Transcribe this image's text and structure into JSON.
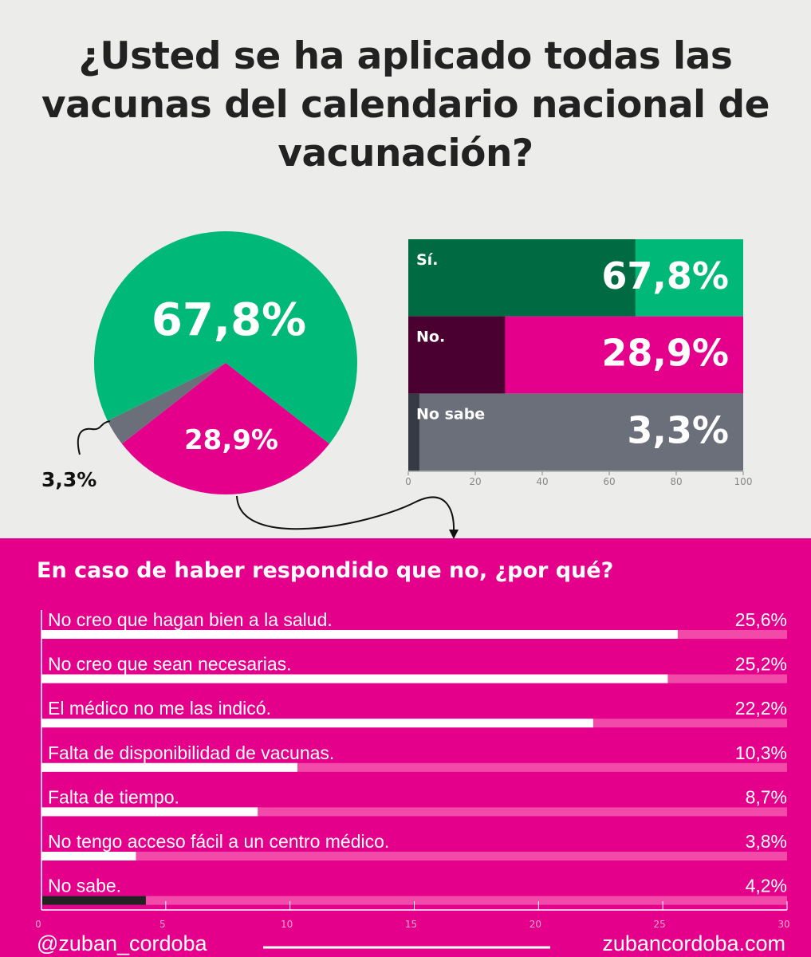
{
  "title": "¿Usted se ha aplicado todas las vacunas del calendario nacional de vacunación?",
  "chart_data": [
    {
      "type": "pie",
      "slices": [
        {
          "label": "67,8%",
          "value": 67.8,
          "color": "#00b877"
        },
        {
          "label": "28,9%",
          "value": 28.9,
          "color": "#e5008c"
        },
        {
          "label": "3,3%",
          "value": 3.3,
          "color": "#6b6f7a"
        }
      ]
    },
    {
      "type": "bar",
      "orientation": "horizontal",
      "xlim": [
        0,
        100
      ],
      "xticks": [
        "0",
        "20",
        "40",
        "60",
        "80",
        "100"
      ],
      "categories": [
        "Sí.",
        "No.",
        "No sabe"
      ],
      "values": [
        67.8,
        28.9,
        3.3
      ],
      "labels": [
        "67,8%",
        "28,9%",
        "3,3%"
      ],
      "colors": [
        {
          "bar": "#006b43",
          "bg": "#00b877"
        },
        {
          "bar": "#4a0030",
          "bg": "#e5008c"
        },
        {
          "bar": "#353a44",
          "bg": "#6b6f7a"
        }
      ]
    },
    {
      "type": "bar",
      "orientation": "horizontal",
      "title": "En caso de  haber respondido que no, ¿por qué?",
      "xlim": [
        0,
        30
      ],
      "xticks": [
        "0",
        "5",
        "10",
        "15",
        "20",
        "25",
        "30"
      ],
      "categories": [
        "No creo que hagan bien a la salud.",
        "No creo que sean necesarias.",
        "El médico no me las indicó.",
        "Falta de disponibilidad de vacunas.",
        "Falta de tiempo.",
        "No tengo acceso fácil a un centro médico.",
        "No sabe."
      ],
      "values": [
        25.6,
        25.2,
        22.2,
        10.3,
        8.7,
        3.8,
        4.2
      ],
      "labels": [
        "25,6%",
        "25,2%",
        "22,2%",
        "10,3%",
        "8,7%",
        "3,8%",
        "4,2%"
      ]
    }
  ],
  "footer": {
    "left": "@zuban_cordoba",
    "right": "zubancordoba.com"
  }
}
